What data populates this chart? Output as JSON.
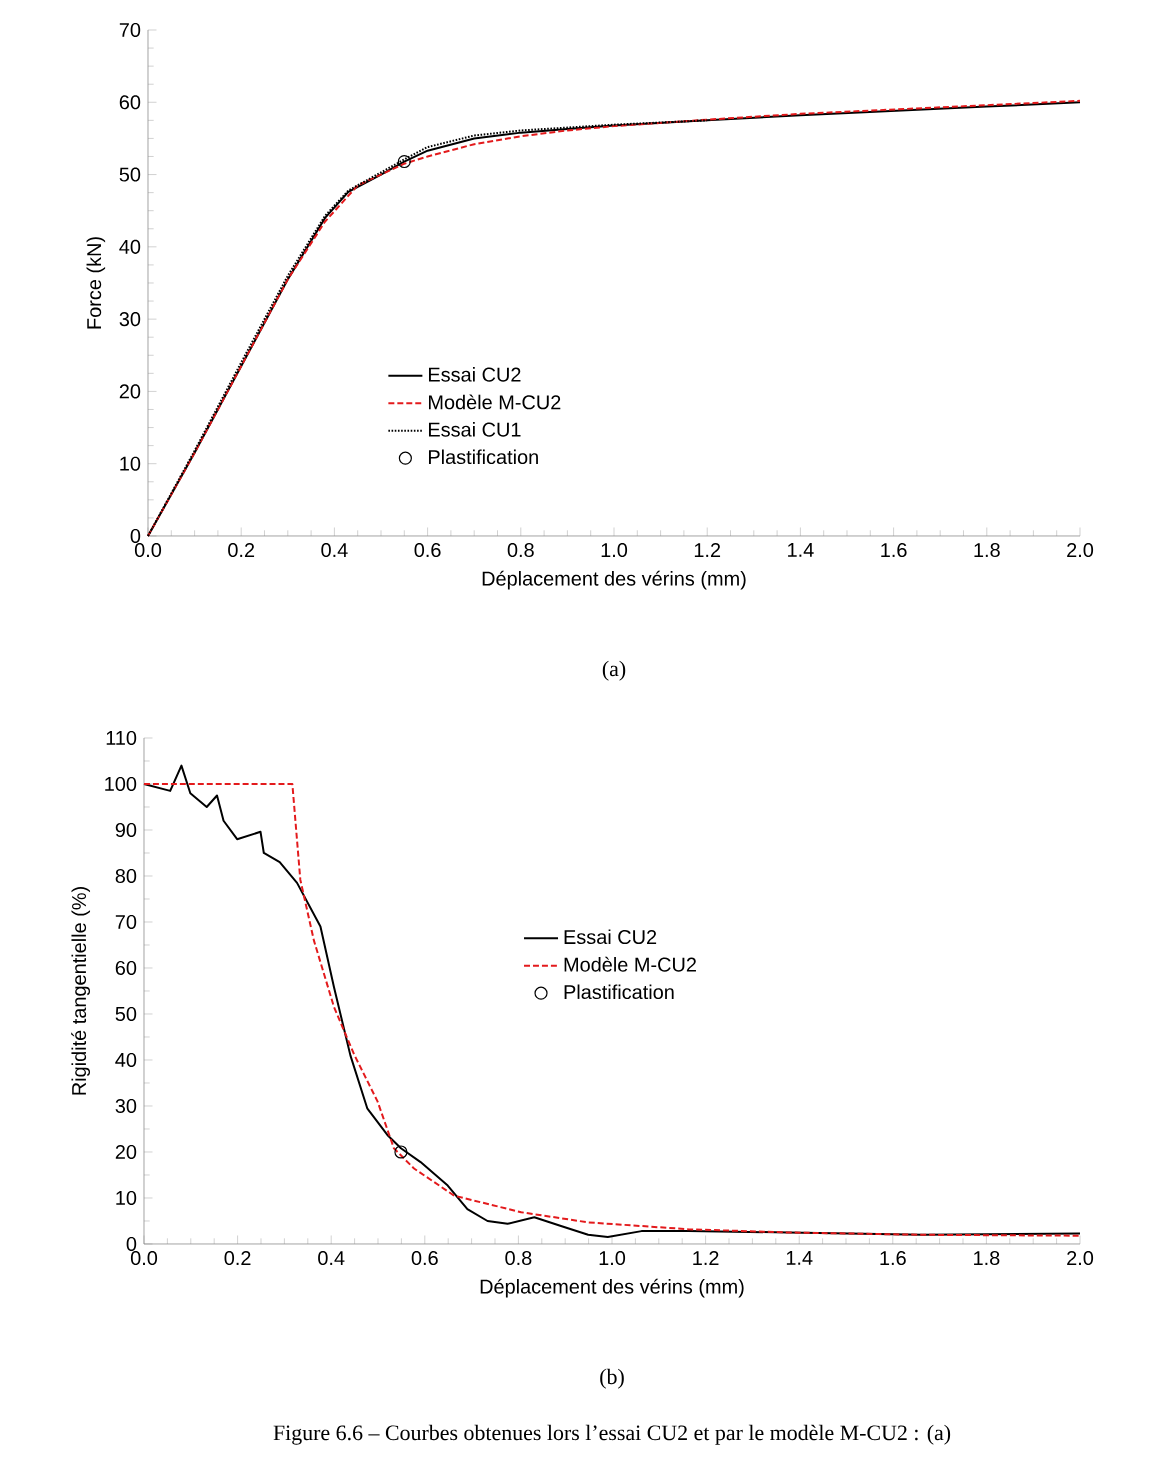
{
  "chart_data": [
    {
      "type": "line",
      "xlabel": "Déplacement des vérins (mm)",
      "ylabel": "Force (kN)",
      "xlim": [
        0,
        2
      ],
      "ylim": [
        0,
        70
      ],
      "xticks": [
        {
          "value": 0,
          "label": "0.0"
        },
        {
          "value": 0.2,
          "label": "0.2"
        },
        {
          "value": 0.4,
          "label": "0.4"
        },
        {
          "value": 0.6,
          "label": "0.6"
        },
        {
          "value": 0.8,
          "label": "0.8"
        },
        {
          "value": 1.0,
          "label": "1.0"
        },
        {
          "value": 1.2,
          "label": "1.2"
        },
        {
          "value": 1.4,
          "label": "1.4"
        },
        {
          "value": 1.6,
          "label": "1.6"
        },
        {
          "value": 1.8,
          "label": "1.8"
        },
        {
          "value": 2.0,
          "label": "2.0"
        }
      ],
      "yticks": [
        0,
        10,
        20,
        30,
        40,
        50,
        60,
        70
      ],
      "grid": false,
      "legend": "bottom left",
      "series": [
        {
          "name": "Essai CU2",
          "color": "#000000",
          "line_style": "solid",
          "x": [
            0,
            0.1,
            0.2,
            0.3,
            0.38,
            0.43,
            0.5,
            0.55,
            0.6,
            0.7,
            0.8,
            0.9,
            1.0,
            1.2,
            1.4,
            1.6,
            1.8,
            2.0
          ],
          "values": [
            0,
            11.5,
            23.5,
            35.5,
            44,
            47.6,
            50,
            51.8,
            53.3,
            55,
            55.8,
            56.3,
            56.8,
            57.5,
            58.2,
            58.8,
            59.4,
            60
          ]
        },
        {
          "name": "Modèle M-CU2",
          "color": "#e31a1c",
          "line_style": "dashed",
          "x": [
            0,
            0.1,
            0.2,
            0.3,
            0.38,
            0.45,
            0.55,
            0.6,
            0.7,
            0.8,
            0.9,
            1.0,
            1.2,
            1.4,
            1.6,
            1.8,
            2.0
          ],
          "values": [
            0,
            11.5,
            23.5,
            35.5,
            43.5,
            48.5,
            51.5,
            52.5,
            54.2,
            55.3,
            56.1,
            56.7,
            57.6,
            58.4,
            59.0,
            59.6,
            60.2
          ]
        },
        {
          "name": "Essai CU1",
          "color": "#000000",
          "line_style": "dotted",
          "x": [
            0,
            0.1,
            0.2,
            0.3,
            0.38,
            0.43,
            0.5,
            0.55,
            0.6,
            0.7,
            0.8,
            0.9,
            1.0,
            1.2
          ],
          "values": [
            0,
            11.8,
            24,
            36,
            44.3,
            47.8,
            50.3,
            52.1,
            53.8,
            55.4,
            56.1,
            56.5,
            56.9,
            57.5
          ]
        },
        {
          "name": "Plastification",
          "type": "scatter",
          "color": "#000000",
          "marker": "circle",
          "x": [
            0.55
          ],
          "values": [
            51.8
          ]
        }
      ],
      "annotations": [
        "(a)"
      ]
    },
    {
      "type": "line",
      "xlabel": "Déplacement des vérins (mm)",
      "ylabel": "Rigidité tangentielle (%)",
      "xlim": [
        0,
        2
      ],
      "ylim": [
        0,
        110
      ],
      "xticks": [
        {
          "value": 0,
          "label": "0.0"
        },
        {
          "value": 0.2,
          "label": "0.2"
        },
        {
          "value": 0.4,
          "label": "0.4"
        },
        {
          "value": 0.6,
          "label": "0.6"
        },
        {
          "value": 0.8,
          "label": "0.8"
        },
        {
          "value": 1.0,
          "label": "1.0"
        },
        {
          "value": 1.2,
          "label": "1.2"
        },
        {
          "value": 1.4,
          "label": "1.4"
        },
        {
          "value": 1.6,
          "label": "1.6"
        },
        {
          "value": 1.8,
          "label": "1.8"
        },
        {
          "value": 2.0,
          "label": "2.0"
        }
      ],
      "yticks": [
        0,
        10,
        20,
        30,
        40,
        50,
        60,
        70,
        80,
        90,
        100,
        110
      ],
      "grid": false,
      "legend": "center",
      "series": [
        {
          "name": "Essai CU2",
          "color": "#000000",
          "line_style": "solid",
          "x": [
            0,
            0.056,
            0.08,
            0.099,
            0.134,
            0.156,
            0.17,
            0.199,
            0.249,
            0.256,
            0.29,
            0.327,
            0.377,
            0.406,
            0.441,
            0.477,
            0.52,
            0.549,
            0.591,
            0.649,
            0.691,
            0.734,
            0.777,
            0.834,
            0.891,
            0.949,
            0.991,
            1.063,
            1.163,
            1.377,
            1.663,
            2.0
          ],
          "values": [
            100,
            98.5,
            104,
            98,
            95,
            97.5,
            92,
            88,
            89.6,
            85,
            83,
            78.5,
            69,
            55.8,
            41,
            29.5,
            23.7,
            20.8,
            17.8,
            12.7,
            7.6,
            5,
            4.4,
            5.8,
            3.9,
            2,
            1.5,
            2.8,
            2.8,
            2.5,
            2,
            2.3
          ]
        },
        {
          "name": "Modèle M-CU2",
          "color": "#e31a1c",
          "line_style": "dashed",
          "x": [
            0,
            0.317,
            0.334,
            0.363,
            0.406,
            0.449,
            0.499,
            0.534,
            0.577,
            0.663,
            0.806,
            0.949,
            1.163,
            1.377,
            1.663,
            2.0
          ],
          "values": [
            100,
            100,
            79.2,
            66,
            51.5,
            41.2,
            31,
            20.8,
            16.4,
            10.5,
            6.9,
            4.7,
            3.2,
            2.5,
            2,
            1.8
          ]
        },
        {
          "name": "Plastification",
          "type": "scatter",
          "color": "#000000",
          "marker": "circle",
          "x": [
            0.549
          ],
          "values": [
            20
          ]
        }
      ],
      "annotations": [
        "(b)",
        "Figure 6.6 – Courbes obtenues lors l’essai CU2 et par le modèle M-CU2 : (a)"
      ]
    }
  ]
}
